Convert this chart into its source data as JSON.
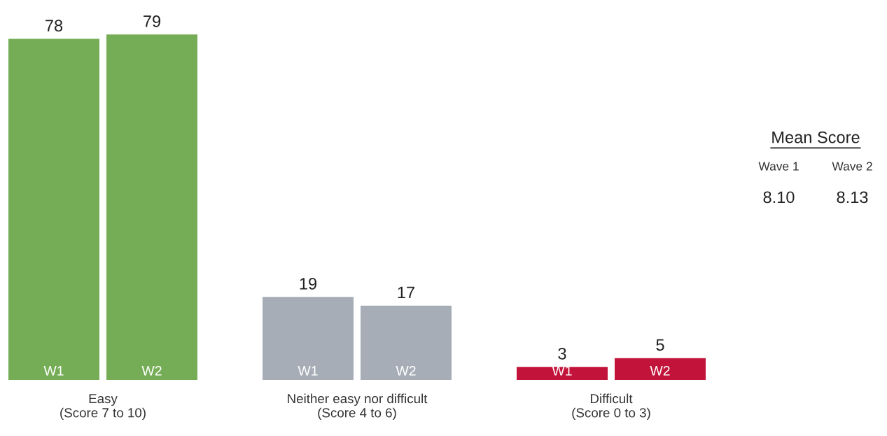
{
  "chart_data": [
    {
      "type": "bar",
      "categories": [
        "Easy\n(Score 7 to 10)",
        "Neither easy nor difficult\n(Score 4 to 6)",
        "Difficult\n(Score 0 to 3)"
      ],
      "series": [
        {
          "name": "W1",
          "colors": [
            "#75ad57",
            "#a6adb6",
            "#c2133a"
          ],
          "values": [
            78,
            19,
            3
          ]
        },
        {
          "name": "W2",
          "colors": [
            "#75ad57",
            "#a6adb6",
            "#c2133a"
          ],
          "values": [
            79,
            17,
            5
          ]
        }
      ],
      "data_labels": true,
      "grid": false,
      "legend": false
    },
    {
      "type": "other",
      "title": "Mean Score",
      "categories": [
        "Wave 1",
        "Wave 2"
      ],
      "value_labels": [
        "8.10",
        "8.13"
      ]
    }
  ]
}
